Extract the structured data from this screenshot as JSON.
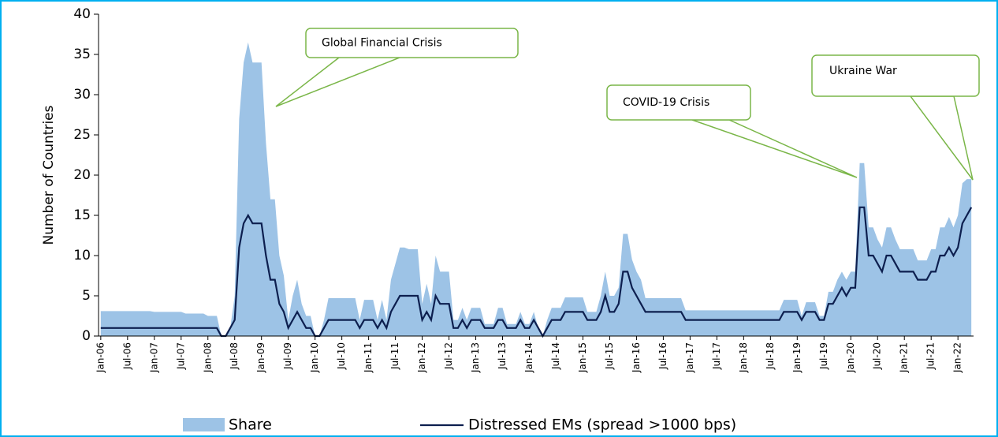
{
  "chart_data": {
    "type": "area-line",
    "y_label": "Number of Countries",
    "categories": [
      "Jan-06",
      null,
      null,
      null,
      null,
      null,
      "Jul-06",
      null,
      null,
      null,
      null,
      null,
      "Jan-07",
      null,
      null,
      null,
      null,
      null,
      "Jul-07",
      null,
      null,
      null,
      null,
      null,
      "Jan-08",
      null,
      null,
      null,
      null,
      null,
      "Jul-08",
      null,
      null,
      null,
      null,
      null,
      "Jan-09",
      null,
      null,
      null,
      null,
      null,
      "Jul-09",
      null,
      null,
      null,
      null,
      null,
      "Jan-10",
      null,
      null,
      null,
      null,
      null,
      "Jul-10",
      null,
      null,
      null,
      null,
      null,
      "Jan-11",
      null,
      null,
      null,
      null,
      null,
      "Jul-11",
      null,
      null,
      null,
      null,
      null,
      "Jan-12",
      null,
      null,
      null,
      null,
      null,
      "Jul-12",
      null,
      null,
      null,
      null,
      null,
      "Jan-13",
      null,
      null,
      null,
      null,
      null,
      "Jul-13",
      null,
      null,
      null,
      null,
      null,
      "Jan-14",
      null,
      null,
      null,
      null,
      null,
      "Jul-14",
      null,
      null,
      null,
      null,
      null,
      "Jan-15",
      null,
      null,
      null,
      null,
      null,
      "Jul-15",
      null,
      null,
      null,
      null,
      null,
      "Jan-16",
      null,
      null,
      null,
      null,
      null,
      "Jul-16",
      null,
      null,
      null,
      null,
      null,
      "Jan-17",
      null,
      null,
      null,
      null,
      null,
      "Jul-17",
      null,
      null,
      null,
      null,
      null,
      "Jan-18",
      null,
      null,
      null,
      null,
      null,
      "Jul-18",
      null,
      null,
      null,
      null,
      null,
      "Jan-19",
      null,
      null,
      null,
      null,
      null,
      "Jul-19",
      null,
      null,
      null,
      null,
      null,
      "Jan-20",
      null,
      null,
      null,
      null,
      null,
      "Jul-20",
      null,
      null,
      null,
      null,
      null,
      "Jan-21",
      null,
      null,
      null,
      null,
      null,
      "Jul-21",
      null,
      null,
      null,
      null,
      null,
      "Jan-22",
      null,
      null,
      null
    ],
    "series": [
      {
        "name": "Share",
        "kind": "area",
        "color": "#9dc3e6",
        "values": [
          3.1,
          3.1,
          3.1,
          3.1,
          3.1,
          3.1,
          3.1,
          3.1,
          3.1,
          3.1,
          3.1,
          3.1,
          3,
          3,
          3,
          3,
          3,
          3,
          3,
          2.8,
          2.8,
          2.8,
          2.8,
          2.8,
          2.5,
          2.5,
          2.5,
          0,
          0,
          1,
          5,
          27,
          34,
          36.5,
          34,
          34,
          34,
          24,
          17,
          17,
          10,
          7.5,
          2,
          5,
          7,
          4,
          2.5,
          2.5,
          0,
          0,
          2,
          4.7,
          4.7,
          4.7,
          4.7,
          4.7,
          4.7,
          4.7,
          2,
          4.5,
          4.5,
          4.5,
          2,
          4.5,
          2,
          7,
          9,
          11,
          11,
          10.8,
          10.8,
          10.8,
          4,
          6.5,
          4,
          10,
          8,
          8,
          8,
          2,
          2,
          3.5,
          2,
          3.5,
          3.5,
          3.5,
          1.5,
          1.5,
          1.5,
          3.5,
          3.5,
          1.5,
          1.5,
          1.5,
          3,
          1.5,
          1.5,
          3,
          1,
          0,
          2,
          3.5,
          3.5,
          3.5,
          4.8,
          4.8,
          4.8,
          4.8,
          4.8,
          3,
          3,
          3,
          5,
          8,
          5,
          5,
          6,
          12.7,
          12.7,
          9.5,
          8,
          7,
          4.7,
          4.7,
          4.7,
          4.7,
          4.7,
          4.7,
          4.7,
          4.7,
          4.7,
          3.2,
          3.2,
          3.2,
          3.2,
          3.2,
          3.2,
          3.2,
          3.2,
          3.2,
          3.2,
          3.2,
          3.2,
          3.2,
          3.2,
          3.2,
          3.2,
          3.2,
          3.2,
          3.2,
          3.2,
          3.2,
          3.2,
          4.5,
          4.5,
          4.5,
          4.5,
          2.5,
          4.2,
          4.2,
          4.2,
          2.5,
          2.5,
          5.5,
          5.5,
          7,
          8,
          7,
          8,
          8,
          21.5,
          21.5,
          13.5,
          13.5,
          12,
          11,
          13.5,
          13.5,
          12,
          10.8,
          10.8,
          10.8,
          10.8,
          9.4,
          9.4,
          9.4,
          10.8,
          10.8,
          13.5,
          13.5,
          14.8,
          13.5,
          15,
          19,
          19.5,
          19.5
        ]
      },
      {
        "name": "Distressed EMs (spread >1000 bps)",
        "kind": "line",
        "color": "#0d1f4f",
        "values": [
          1,
          1,
          1,
          1,
          1,
          1,
          1,
          1,
          1,
          1,
          1,
          1,
          1,
          1,
          1,
          1,
          1,
          1,
          1,
          1,
          1,
          1,
          1,
          1,
          1,
          1,
          1,
          0,
          0,
          1,
          2,
          11,
          14,
          15,
          14,
          14,
          14,
          10,
          7,
          7,
          4,
          3,
          1,
          2,
          3,
          2,
          1,
          1,
          0,
          0,
          1,
          2,
          2,
          2,
          2,
          2,
          2,
          2,
          1,
          2,
          2,
          2,
          1,
          2,
          1,
          3,
          4,
          5,
          5,
          5,
          5,
          5,
          2,
          3,
          2,
          5,
          4,
          4,
          4,
          1,
          1,
          2,
          1,
          2,
          2,
          2,
          1,
          1,
          1,
          2,
          2,
          1,
          1,
          1,
          2,
          1,
          1,
          2,
          1,
          0,
          1,
          2,
          2,
          2,
          3,
          3,
          3,
          3,
          3,
          2,
          2,
          2,
          3,
          5,
          3,
          3,
          4,
          8,
          8,
          6,
          5,
          4,
          3,
          3,
          3,
          3,
          3,
          3,
          3,
          3,
          3,
          2,
          2,
          2,
          2,
          2,
          2,
          2,
          2,
          2,
          2,
          2,
          2,
          2,
          2,
          2,
          2,
          2,
          2,
          2,
          2,
          2,
          2,
          3,
          3,
          3,
          3,
          2,
          3,
          3,
          3,
          2,
          2,
          4,
          4,
          5,
          6,
          5,
          6,
          6,
          16,
          16,
          10,
          10,
          9,
          8,
          10,
          10,
          9,
          8,
          8,
          8,
          8,
          7,
          7,
          7,
          8,
          8,
          10,
          10,
          11,
          10,
          11,
          14,
          15,
          16
        ]
      }
    ],
    "ylim": [
      0,
      40
    ],
    "yticks": [
      0,
      5,
      10,
      15,
      20,
      25,
      30,
      35,
      40
    ],
    "annotation_color": "#7ab648",
    "annotations": [
      {
        "text": "Global Financial  Crisis"
      },
      {
        "text": "COVID-19 Crisis"
      },
      {
        "text": "Ukraine War"
      }
    ]
  }
}
